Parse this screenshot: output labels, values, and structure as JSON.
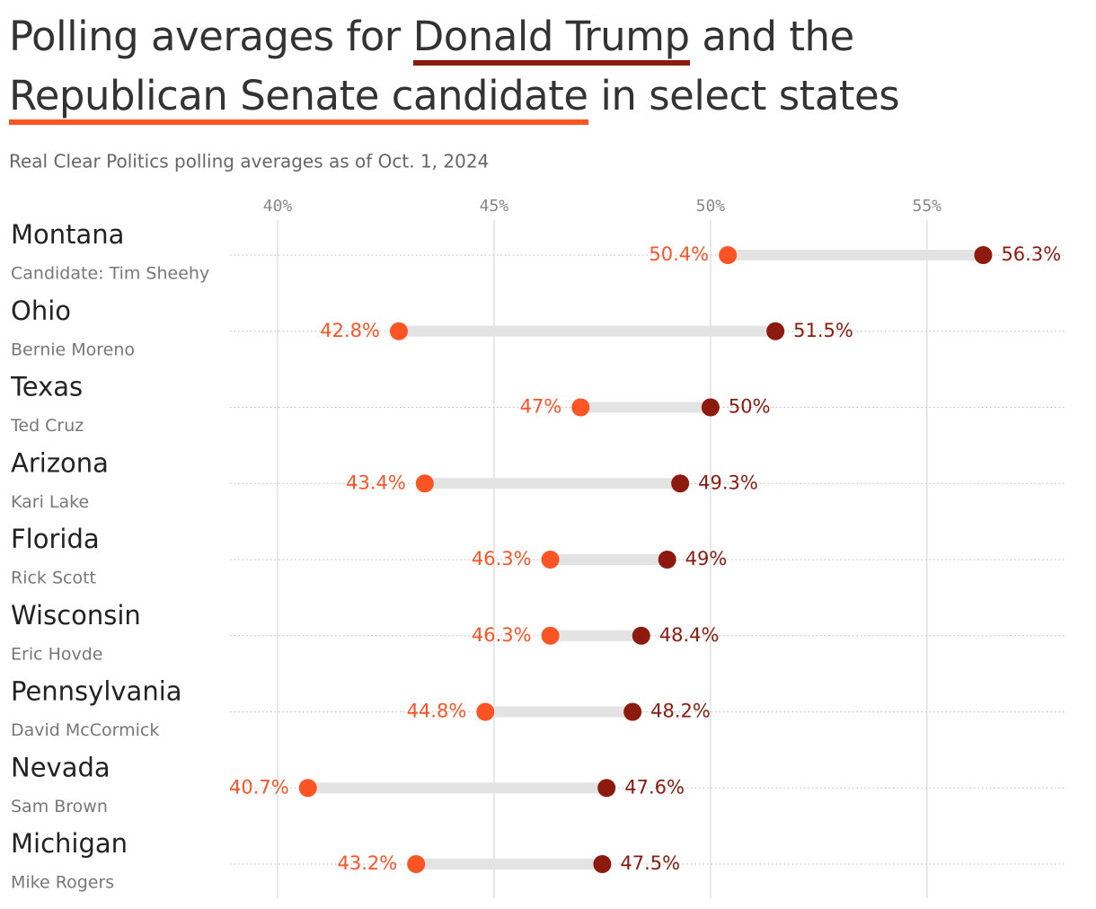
{
  "chart_data": {
    "type": "dumbbell",
    "title_start": "Polling averages for",
    "title_middle": "and the",
    "title_end": "in select states",
    "subtitle": "Real Clear Politics polling averages as of Oct. 1, 2024",
    "categories": [
      "Montana",
      "Ohio",
      "Texas",
      "Arizona",
      "Florida",
      "Wisconsin",
      "Pennsylvania",
      "Nevada",
      "Michigan"
    ],
    "candidates": [
      "Candidate: Tim Sheehy",
      "Bernie Moreno",
      "Ted Cruz",
      "Kari Lake",
      "Rick Scott",
      "Eric Hovde",
      "David McCormick",
      "Sam Brown",
      "Mike Rogers"
    ],
    "series": [
      {
        "name": "Donald Trump",
        "color": "#8c1a0f",
        "values": [
          56.3,
          51.5,
          50,
          49.3,
          49,
          48.4,
          48.2,
          47.6,
          47.5
        ],
        "value_labels": [
          "56.3%",
          "51.5%",
          "50%",
          "49.3%",
          "49%",
          "48.4%",
          "48.2%",
          "47.6%",
          "47.5%"
        ]
      },
      {
        "name": "Republican Senate candidate",
        "color": "#fc5424",
        "values": [
          50.4,
          42.8,
          47,
          43.4,
          46.3,
          46.3,
          44.8,
          40.7,
          43.2
        ],
        "value_labels": [
          "50.4%",
          "42.8%",
          "47%",
          "43.4%",
          "46.3%",
          "46.3%",
          "44.8%",
          "40.7%",
          "43.2%"
        ]
      }
    ],
    "xlim": [
      38.9,
      58.2
    ],
    "xticks": [
      {
        "value": 40,
        "label": "40%"
      },
      {
        "value": 45,
        "label": "45%"
      },
      {
        "value": 50,
        "label": "50%"
      },
      {
        "value": 55,
        "label": "55%"
      }
    ],
    "grid": true
  }
}
